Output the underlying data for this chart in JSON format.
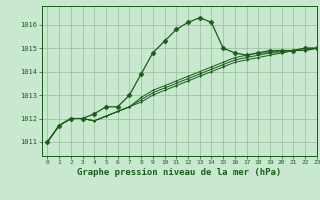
{
  "bg_color": "#c8e8d0",
  "grid_color": "#99bb99",
  "line_color": "#1a5c1a",
  "marker_color": "#1a5c1a",
  "xlabel": "Graphe pression niveau de la mer (hPa)",
  "xlabel_fontsize": 6.5,
  "ylim": [
    1010.4,
    1016.8
  ],
  "xlim": [
    -0.5,
    23
  ],
  "yticks": [
    1011,
    1012,
    1013,
    1014,
    1015,
    1016
  ],
  "xticks": [
    0,
    1,
    2,
    3,
    4,
    5,
    6,
    7,
    8,
    9,
    10,
    11,
    12,
    13,
    14,
    15,
    16,
    17,
    18,
    19,
    20,
    21,
    22,
    23
  ],
  "series": [
    [
      1011.0,
      1011.7,
      1012.0,
      1012.0,
      1012.2,
      1012.5,
      1012.5,
      1013.0,
      1013.9,
      1014.8,
      1015.3,
      1015.8,
      1016.1,
      1016.3,
      1016.1,
      1015.0,
      1014.8,
      1014.7,
      1014.8,
      1014.9,
      1014.9,
      1014.9,
      1015.0,
      1015.0
    ],
    [
      1011.0,
      1011.7,
      1012.0,
      1012.0,
      1011.9,
      1012.1,
      1012.3,
      1012.5,
      1012.7,
      1013.0,
      1013.2,
      1013.4,
      1013.6,
      1013.8,
      1014.0,
      1014.2,
      1014.4,
      1014.5,
      1014.6,
      1014.7,
      1014.8,
      1014.9,
      1014.9,
      1015.0
    ],
    [
      1011.0,
      1011.7,
      1012.0,
      1012.0,
      1011.9,
      1012.1,
      1012.3,
      1012.5,
      1012.8,
      1013.1,
      1013.3,
      1013.5,
      1013.7,
      1013.9,
      1014.1,
      1014.3,
      1014.5,
      1014.6,
      1014.7,
      1014.8,
      1014.8,
      1014.9,
      1014.9,
      1015.0
    ],
    [
      1011.0,
      1011.7,
      1012.0,
      1012.0,
      1011.9,
      1012.1,
      1012.3,
      1012.5,
      1012.9,
      1013.2,
      1013.4,
      1013.6,
      1013.8,
      1014.0,
      1014.2,
      1014.4,
      1014.6,
      1014.7,
      1014.8,
      1014.8,
      1014.9,
      1014.9,
      1015.0,
      1015.0
    ]
  ],
  "marker_size": 2.5
}
